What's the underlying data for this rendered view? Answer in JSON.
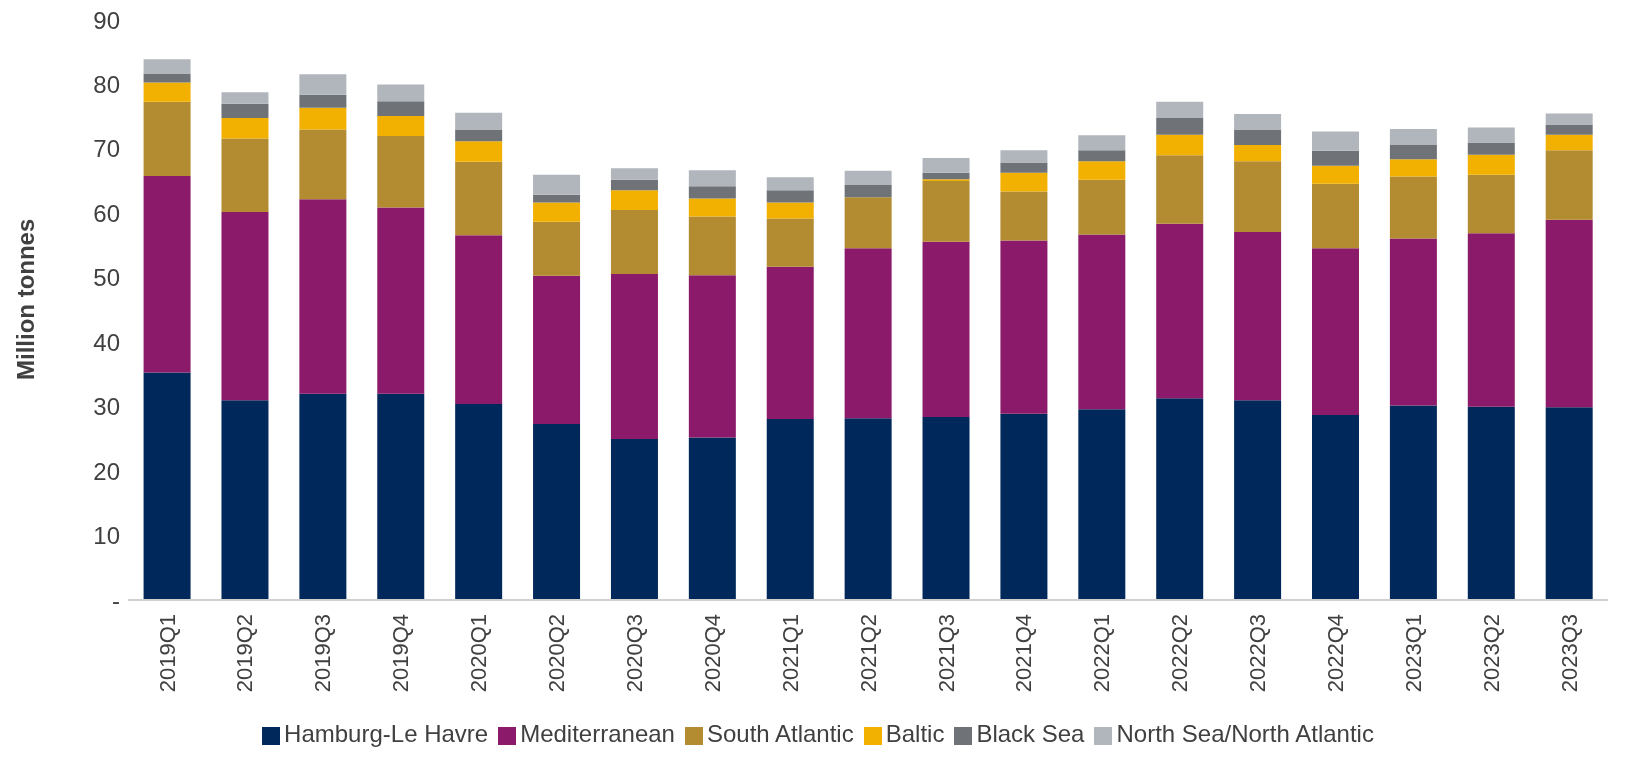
{
  "chart_data": {
    "type": "bar",
    "stacked": true,
    "ylabel": "Million tonnes",
    "categories": [
      "2019Q1",
      "2019Q2",
      "2019Q3",
      "2019Q4",
      "2020Q1",
      "2020Q2",
      "2020Q3",
      "2020Q4",
      "2021Q1",
      "2021Q2",
      "2021Q3",
      "2021Q4",
      "2022Q1",
      "2022Q2",
      "2022Q3",
      "2022Q4",
      "2023Q1",
      "2023Q2",
      "2023Q3"
    ],
    "series": [
      {
        "name": "Hamburg-Le Havre",
        "color": "#00285a",
        "values": [
          35.3,
          31.0,
          32.0,
          32.0,
          30.4,
          27.3,
          25.0,
          25.2,
          28.1,
          28.2,
          28.4,
          28.9,
          29.6,
          31.3,
          31.0,
          28.7,
          30.2,
          30.0,
          29.9
        ]
      },
      {
        "name": "Mediterranean",
        "color": "#8c1a6a",
        "values": [
          30.5,
          29.2,
          30.2,
          28.9,
          26.2,
          23.0,
          25.6,
          25.2,
          23.6,
          26.4,
          27.2,
          26.9,
          27.1,
          27.1,
          26.1,
          25.9,
          25.9,
          26.9,
          29.1
        ]
      },
      {
        "name": "South Atlantic",
        "color": "#b38b31",
        "values": [
          11.5,
          11.4,
          10.8,
          11.1,
          11.4,
          8.4,
          9.9,
          9.1,
          7.5,
          7.9,
          9.4,
          7.6,
          8.5,
          10.6,
          11.0,
          10.0,
          9.6,
          9.1,
          10.8
        ]
      },
      {
        "name": "Baltic",
        "color": "#f2b000",
        "values": [
          3.0,
          3.2,
          3.4,
          3.1,
          3.2,
          3.0,
          3.1,
          2.8,
          2.5,
          0,
          0.3,
          2.9,
          2.9,
          3.2,
          2.5,
          2.8,
          2.7,
          3.1,
          2.4
        ]
      },
      {
        "name": "Black Sea",
        "color": "#6f7378",
        "values": [
          1.4,
          2.2,
          2.0,
          2.3,
          1.8,
          1.2,
          1.6,
          1.9,
          1.9,
          1.9,
          1.0,
          1.6,
          1.7,
          2.6,
          2.4,
          2.3,
          2.2,
          1.9,
          1.6
        ]
      },
      {
        "name": "North Sea/North Atlantic",
        "color": "#b1b6bc",
        "values": [
          2.2,
          1.8,
          3.2,
          2.6,
          2.6,
          3.1,
          1.8,
          2.5,
          2.0,
          2.2,
          2.3,
          1.9,
          2.3,
          2.5,
          2.4,
          3.0,
          2.5,
          2.3,
          1.7
        ]
      }
    ],
    "ylim": [
      0,
      90
    ],
    "yticks": [
      {
        "value": 0,
        "label": "-"
      },
      10,
      20,
      30,
      40,
      50,
      60,
      70,
      80,
      90
    ],
    "grid": false,
    "legend": "bottom"
  }
}
